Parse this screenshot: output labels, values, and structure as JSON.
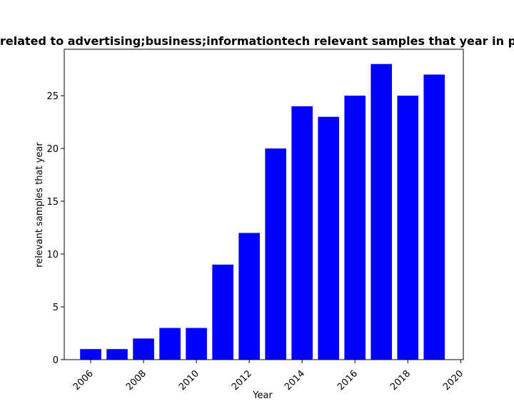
{
  "chart_data": {
    "type": "bar",
    "title": "related to advertising;business;informationtech relevant samples that year in p",
    "xlabel": "Year",
    "ylabel": "relevant samples that year",
    "x": [
      2006,
      2007,
      2008,
      2009,
      2010,
      2011,
      2012,
      2013,
      2014,
      2015,
      2016,
      2017,
      2018,
      2019
    ],
    "values": [
      1,
      1,
      2,
      3,
      3,
      9,
      12,
      20,
      24,
      23,
      25,
      28,
      25,
      27
    ],
    "xlim": [
      2005.0,
      2020.1
    ],
    "ylim": [
      0,
      29.4
    ],
    "xticks": [
      2006,
      2008,
      2010,
      2012,
      2014,
      2016,
      2018,
      2020
    ],
    "yticks": [
      0,
      5,
      10,
      15,
      20,
      25
    ],
    "bar_color": "#0000ff",
    "grid": false,
    "legend": "none"
  }
}
